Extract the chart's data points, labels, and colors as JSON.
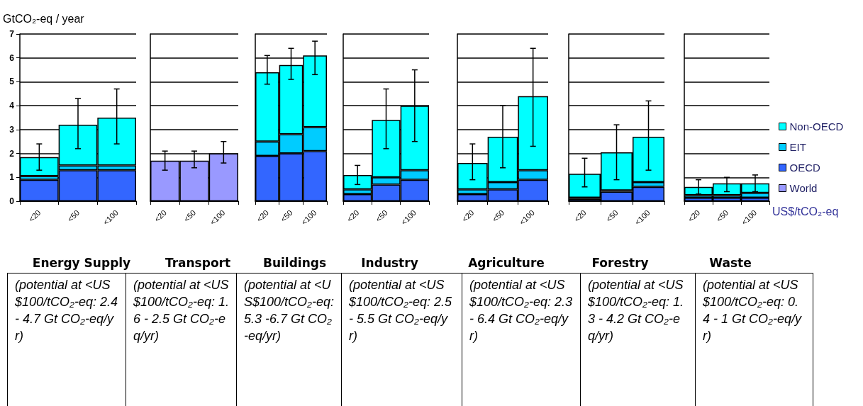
{
  "chart_data": [
    {
      "type": "bar",
      "title": "Energy Supply",
      "ylabel": "GtCO₂-eq / year",
      "categories": [
        "<20",
        "<50",
        "<100"
      ],
      "stacked": true,
      "ylim": [
        0,
        7
      ],
      "yticks": [
        0,
        1,
        2,
        3,
        4,
        5,
        6,
        7
      ],
      "grid": "y",
      "legend": false,
      "series": [
        {
          "color": "#3366ff",
          "values": [
            0.9,
            1.3,
            1.3
          ]
        },
        {
          "color": "#00ccff",
          "values": [
            0.15,
            0.2,
            0.2
          ]
        },
        {
          "color": "#00ffff",
          "values": [
            0.8,
            1.7,
            2.0
          ],
          "errors": [
            [
              1.3,
              2.4
            ],
            [
              2.2,
              4.3
            ],
            [
              2.4,
              4.7
            ]
          ]
        }
      ],
      "annotations": [
        "(potential at <US$100/tCO₂-eq: 2.4 - 4.7 Gt CO₂-eq/yr)"
      ]
    },
    {
      "type": "bar",
      "title": "Transport",
      "categories": [
        "<20",
        "<50",
        "<100"
      ],
      "stacked": true,
      "ylim": [
        0,
        7
      ],
      "yticks": [
        0,
        1,
        2,
        3,
        4,
        5,
        6,
        7
      ],
      "grid": "y",
      "legend": false,
      "tick_labels": "x",
      "series": [
        {
          "color": "#9999ff",
          "values": [
            1.7,
            1.7,
            2.0
          ],
          "errors": [
            [
              1.3,
              2.1
            ],
            [
              1.4,
              2.1
            ],
            [
              1.6,
              2.5
            ]
          ]
        }
      ],
      "annotations": [
        "(potential at <US$100/tCO₂-eq: 1.6 - 2.5 Gt CO₂-eq/yr)"
      ]
    },
    {
      "type": "bar",
      "title": "Buildings",
      "categories": [
        "<20",
        "<50",
        "<100"
      ],
      "stacked": true,
      "ylim": [
        0,
        7
      ],
      "yticks": [
        0,
        1,
        2,
        3,
        4,
        5,
        6,
        7
      ],
      "grid": "y",
      "legend": false,
      "tick_labels": "x",
      "series": [
        {
          "color": "#3366ff",
          "values": [
            1.9,
            2.0,
            2.1
          ]
        },
        {
          "color": "#00ccff",
          "values": [
            0.6,
            0.8,
            1.0
          ]
        },
        {
          "color": "#00ffff",
          "values": [
            2.9,
            2.9,
            3.0
          ],
          "errors": [
            [
              4.9,
              6.1
            ],
            [
              5.1,
              6.4
            ],
            [
              5.3,
              6.7
            ]
          ]
        }
      ],
      "annotations": [
        "(potential at <US$100/tCO₂-eq: 5.3 -6.7 Gt CO₂-eq/yr)"
      ]
    },
    {
      "type": "bar",
      "title": "Industry",
      "categories": [
        "<20",
        "<50",
        "<100"
      ],
      "stacked": true,
      "ylim": [
        0,
        7
      ],
      "yticks": [
        0,
        1,
        2,
        3,
        4,
        5,
        6,
        7
      ],
      "grid": "y",
      "legend": false,
      "tick_labels": "x",
      "series": [
        {
          "color": "#3366ff",
          "values": [
            0.3,
            0.7,
            0.9
          ]
        },
        {
          "color": "#00ccff",
          "values": [
            0.2,
            0.3,
            0.4
          ]
        },
        {
          "color": "#00ffff",
          "values": [
            0.6,
            2.4,
            2.7
          ],
          "errors": [
            [
              0.7,
              1.5
            ],
            [
              2.2,
              4.7
            ],
            [
              2.5,
              5.5
            ]
          ]
        }
      ],
      "annotations": [
        "(potential at <US$100/tCO₂-eq: 2.5 - 5.5 Gt CO₂-eq/yr)"
      ]
    },
    {
      "type": "bar",
      "title": "Agriculture",
      "categories": [
        "<20",
        "<50",
        "<100"
      ],
      "stacked": true,
      "ylim": [
        0,
        7
      ],
      "yticks": [
        0,
        1,
        2,
        3,
        4,
        5,
        6,
        7
      ],
      "grid": "y",
      "legend": false,
      "tick_labels": "x",
      "series": [
        {
          "color": "#3366ff",
          "values": [
            0.3,
            0.5,
            0.9
          ]
        },
        {
          "color": "#00ccff",
          "values": [
            0.2,
            0.3,
            0.4
          ]
        },
        {
          "color": "#00ffff",
          "values": [
            1.1,
            1.9,
            3.1
          ],
          "errors": [
            [
              0.9,
              2.4
            ],
            [
              1.4,
              4.0
            ],
            [
              2.3,
              6.4
            ]
          ]
        }
      ],
      "annotations": [
        "(potential at <US$100/tCO₂-eq: 2.3  - 6.4 Gt CO₂-eq/yr)"
      ]
    },
    {
      "type": "bar",
      "title": "Forestry",
      "categories": [
        "<20",
        "<50",
        "<100"
      ],
      "stacked": true,
      "ylim": [
        0,
        7
      ],
      "yticks": [
        0,
        1,
        2,
        3,
        4,
        5,
        6,
        7
      ],
      "grid": "y",
      "legend": false,
      "tick_labels": "x",
      "series": [
        {
          "color": "#3366ff",
          "values": [
            0.1,
            0.4,
            0.6
          ]
        },
        {
          "color": "#00ccff",
          "values": [
            0.05,
            0.05,
            0.2
          ]
        },
        {
          "color": "#00ffff",
          "values": [
            1.0,
            1.6,
            1.9
          ],
          "errors": [
            [
              0.6,
              1.8
            ],
            [
              0.9,
              3.2
            ],
            [
              1.3,
              4.2
            ]
          ]
        }
      ],
      "annotations": [
        "(potential at <US$100/tCO₂-eq: 1.3 - 4.2 Gt CO₂-eq/yr)"
      ]
    },
    {
      "type": "bar",
      "title": "Waste",
      "xlabel": "US$/tCO₂-eq",
      "categories": [
        "<20",
        "<50",
        "<100"
      ],
      "stacked": true,
      "ylim": [
        0,
        7
      ],
      "yticks": [
        0,
        1,
        2,
        3,
        4,
        5,
        6,
        7
      ],
      "grid": "y",
      "legend": "right",
      "tick_labels": "x",
      "series": [
        {
          "name": "World",
          "color": "#9999ff",
          "values": [
            null,
            null,
            null
          ]
        },
        {
          "name": "OECD",
          "color": "#3366ff",
          "values": [
            0.15,
            0.15,
            0.15
          ]
        },
        {
          "name": "EIT",
          "color": "#00ccff",
          "values": [
            0.1,
            0.1,
            0.2
          ]
        },
        {
          "name": "Non-OECD",
          "color": "#00ffff",
          "values": [
            0.35,
            0.5,
            0.4
          ],
          "errors": [
            [
              0.3,
              0.9
            ],
            [
              0.4,
              1.0
            ],
            [
              0.4,
              1.1
            ]
          ]
        }
      ],
      "annotations": [
        "(potential at <US$100/tCO₂-eq: 0.4 - 1 Gt CO₂-eq/yr)"
      ]
    }
  ]
}
